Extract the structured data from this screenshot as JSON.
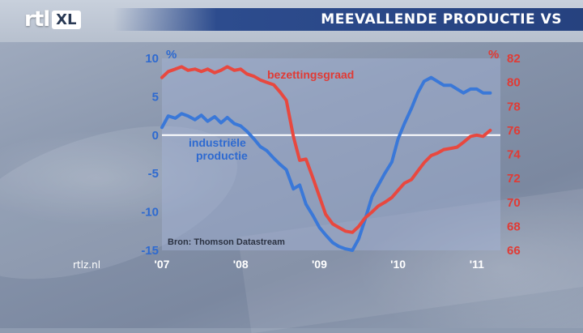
{
  "header": {
    "title": "MEEVALLENDE PRODUCTIE VS",
    "logo_text": "rtl",
    "logo_badge": "XL"
  },
  "footer": {
    "site": "rtlz.nl"
  },
  "colors": {
    "blue_series": "#3a78d8",
    "red_series": "#e8483f",
    "title_bar": "#2d4c8e"
  },
  "chart_data": {
    "type": "line",
    "title": "MEEVALLENDE PRODUCTIE VS",
    "source": "Bron: Thomson Datastream",
    "x_tick_labels": [
      "'07",
      "'08",
      "'09",
      "'10",
      "'11"
    ],
    "x_range": [
      2007.0,
      2011.3
    ],
    "left_axis": {
      "unit": "%",
      "ticks": [
        "10",
        "5",
        "0",
        "-5",
        "-10",
        "-15"
      ],
      "range": [
        -15,
        10
      ]
    },
    "right_axis": {
      "unit": "%",
      "ticks": [
        "82",
        "80",
        "78",
        "76",
        "74",
        "72",
        "70",
        "68",
        "66"
      ],
      "range": [
        66,
        82
      ]
    },
    "zero_line": true,
    "series": [
      {
        "name": "industriële productie",
        "label_lines": [
          "industriële",
          "productie"
        ],
        "axis": "left",
        "color": "#3a78d8",
        "points": [
          [
            2007.0,
            1.0
          ],
          [
            2007.08,
            2.5
          ],
          [
            2007.17,
            2.2
          ],
          [
            2007.25,
            2.8
          ],
          [
            2007.33,
            2.5
          ],
          [
            2007.42,
            2.0
          ],
          [
            2007.5,
            2.6
          ],
          [
            2007.58,
            1.8
          ],
          [
            2007.67,
            2.4
          ],
          [
            2007.75,
            1.6
          ],
          [
            2007.83,
            2.3
          ],
          [
            2007.92,
            1.5
          ],
          [
            2008.0,
            1.2
          ],
          [
            2008.08,
            0.5
          ],
          [
            2008.17,
            -0.5
          ],
          [
            2008.25,
            -1.5
          ],
          [
            2008.33,
            -2.0
          ],
          [
            2008.42,
            -3.0
          ],
          [
            2008.5,
            -3.8
          ],
          [
            2008.58,
            -4.5
          ],
          [
            2008.67,
            -7.0
          ],
          [
            2008.75,
            -6.5
          ],
          [
            2008.83,
            -9.0
          ],
          [
            2008.92,
            -10.5
          ],
          [
            2009.0,
            -12.0
          ],
          [
            2009.08,
            -13.0
          ],
          [
            2009.17,
            -14.0
          ],
          [
            2009.25,
            -14.5
          ],
          [
            2009.33,
            -14.8
          ],
          [
            2009.42,
            -15.0
          ],
          [
            2009.5,
            -13.5
          ],
          [
            2009.58,
            -11.0
          ],
          [
            2009.67,
            -8.0
          ],
          [
            2009.75,
            -6.5
          ],
          [
            2009.83,
            -5.0
          ],
          [
            2009.92,
            -3.5
          ],
          [
            2010.0,
            -0.5
          ],
          [
            2010.08,
            1.5
          ],
          [
            2010.17,
            3.5
          ],
          [
            2010.25,
            5.5
          ],
          [
            2010.33,
            7.0
          ],
          [
            2010.42,
            7.5
          ],
          [
            2010.5,
            7.0
          ],
          [
            2010.58,
            6.5
          ],
          [
            2010.67,
            6.5
          ],
          [
            2010.75,
            6.0
          ],
          [
            2010.83,
            5.5
          ],
          [
            2010.92,
            6.0
          ],
          [
            2011.0,
            6.0
          ],
          [
            2011.08,
            5.5
          ],
          [
            2011.17,
            5.5
          ]
        ]
      },
      {
        "name": "bezettingsgraad",
        "label_lines": [
          "bezettingsgraad"
        ],
        "axis": "right",
        "color": "#e8483f",
        "points": [
          [
            2007.0,
            80.4
          ],
          [
            2007.08,
            80.9
          ],
          [
            2007.17,
            81.1
          ],
          [
            2007.25,
            81.3
          ],
          [
            2007.33,
            81.0
          ],
          [
            2007.42,
            81.1
          ],
          [
            2007.5,
            80.9
          ],
          [
            2007.58,
            81.1
          ],
          [
            2007.67,
            80.8
          ],
          [
            2007.75,
            81.0
          ],
          [
            2007.83,
            81.3
          ],
          [
            2007.92,
            81.0
          ],
          [
            2008.0,
            81.1
          ],
          [
            2008.08,
            80.7
          ],
          [
            2008.17,
            80.5
          ],
          [
            2008.25,
            80.2
          ],
          [
            2008.33,
            80.0
          ],
          [
            2008.42,
            79.8
          ],
          [
            2008.5,
            79.2
          ],
          [
            2008.58,
            78.5
          ],
          [
            2008.67,
            75.5
          ],
          [
            2008.75,
            73.5
          ],
          [
            2008.83,
            73.6
          ],
          [
            2008.92,
            72.0
          ],
          [
            2009.0,
            70.5
          ],
          [
            2009.08,
            69.0
          ],
          [
            2009.17,
            68.2
          ],
          [
            2009.25,
            67.9
          ],
          [
            2009.33,
            67.6
          ],
          [
            2009.42,
            67.5
          ],
          [
            2009.5,
            68.0
          ],
          [
            2009.58,
            68.7
          ],
          [
            2009.67,
            69.2
          ],
          [
            2009.75,
            69.7
          ],
          [
            2009.83,
            70.0
          ],
          [
            2009.92,
            70.4
          ],
          [
            2010.0,
            71.0
          ],
          [
            2010.08,
            71.6
          ],
          [
            2010.17,
            71.9
          ],
          [
            2010.25,
            72.6
          ],
          [
            2010.33,
            73.3
          ],
          [
            2010.42,
            73.9
          ],
          [
            2010.5,
            74.1
          ],
          [
            2010.58,
            74.4
          ],
          [
            2010.67,
            74.5
          ],
          [
            2010.75,
            74.6
          ],
          [
            2010.83,
            75.0
          ],
          [
            2010.92,
            75.5
          ],
          [
            2011.0,
            75.6
          ],
          [
            2011.08,
            75.5
          ],
          [
            2011.17,
            76.0
          ]
        ]
      }
    ]
  }
}
